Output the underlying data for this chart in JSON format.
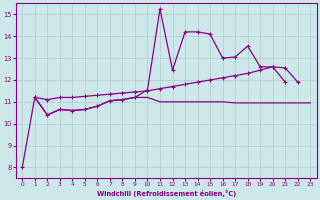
{
  "xlabel": "Windchill (Refroidissement éolien,°C)",
  "xlim": [
    -0.5,
    23.5
  ],
  "ylim": [
    7.5,
    15.5
  ],
  "yticks": [
    8,
    9,
    10,
    11,
    12,
    13,
    14,
    15
  ],
  "xticks": [
    0,
    1,
    2,
    3,
    4,
    5,
    6,
    7,
    8,
    9,
    10,
    11,
    12,
    13,
    14,
    15,
    16,
    17,
    18,
    19,
    20,
    21,
    22,
    23
  ],
  "background_color": "#cde8e8",
  "line_color": "#880088",
  "grid_color": "#b0cccc",
  "s1_x": [
    0,
    1,
    2,
    3,
    4,
    5,
    6,
    7,
    8,
    9,
    10,
    11,
    12,
    13,
    14,
    15,
    16,
    17,
    18,
    19,
    20,
    21
  ],
  "s1_y": [
    8.0,
    11.2,
    10.4,
    10.65,
    10.6,
    10.65,
    10.8,
    11.05,
    11.1,
    11.2,
    11.55,
    15.25,
    12.45,
    14.2,
    14.2,
    14.1,
    13.0,
    13.05,
    13.55,
    12.6,
    12.6,
    11.9
  ],
  "s2_x": [
    1,
    2,
    3,
    4,
    5,
    6,
    7,
    8,
    9,
    10,
    11,
    12,
    13,
    14,
    15,
    16,
    17,
    18,
    19,
    20,
    21,
    22
  ],
  "s2_y": [
    11.2,
    11.1,
    11.2,
    11.2,
    11.25,
    11.3,
    11.35,
    11.4,
    11.45,
    11.5,
    11.6,
    11.7,
    11.8,
    11.9,
    12.0,
    12.1,
    12.2,
    12.3,
    12.45,
    12.6,
    12.55,
    11.9
  ],
  "s3_x": [
    1,
    2,
    3,
    4,
    5,
    6,
    7,
    8,
    9,
    10,
    11,
    12,
    13,
    14,
    15,
    16,
    17,
    18,
    19,
    20,
    21,
    22,
    23
  ],
  "s3_y": [
    11.2,
    10.4,
    10.65,
    10.6,
    10.65,
    10.8,
    11.05,
    11.1,
    11.2,
    11.2,
    11.0,
    11.0,
    11.0,
    11.0,
    11.0,
    11.0,
    10.95,
    10.95,
    10.95,
    10.95,
    10.95,
    10.95,
    10.95
  ]
}
